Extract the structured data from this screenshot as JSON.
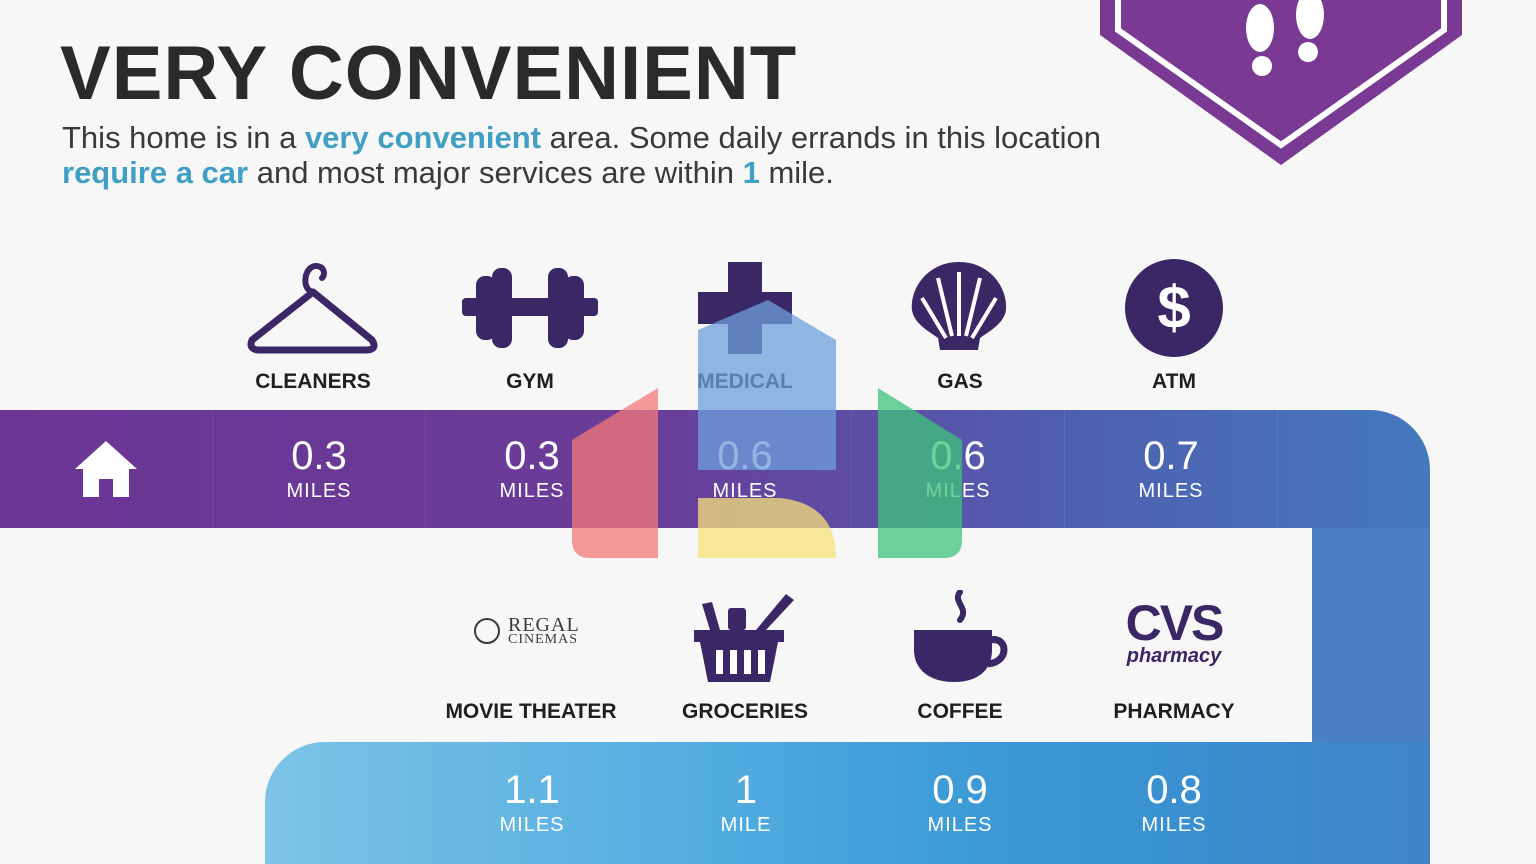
{
  "header": {
    "title": "VERY CONVENIENT",
    "desc_1": "This home is in a ",
    "desc_hl1": "very convenient",
    "desc_2": " area. Some daily errands in this location ",
    "desc_hl2": "require a car",
    "desc_3": " and most major services are within ",
    "desc_hl3": "1",
    "desc_4": " mile."
  },
  "top_row": [
    {
      "label": "CLEANERS",
      "value": "0.3",
      "unit": "MILES",
      "icon": "hanger-icon"
    },
    {
      "label": "GYM",
      "value": "0.3",
      "unit": "MILES",
      "icon": "dumbbell-icon"
    },
    {
      "label": "MEDICAL",
      "value": "0.6",
      "unit": "MILES",
      "icon": "medical-cross-icon"
    },
    {
      "label": "GAS",
      "value": "0.6",
      "unit": "MILES",
      "icon": "shell-icon"
    },
    {
      "label": "ATM",
      "value": "0.7",
      "unit": "MILES",
      "icon": "dollar-icon"
    }
  ],
  "bottom_row": [
    {
      "label": "MOVIE THEATER",
      "value": "1.1",
      "unit": "MILES",
      "logo_1": "REGAL",
      "logo_2": "CINEMAS"
    },
    {
      "label": "GROCERIES",
      "value": "1",
      "unit": "MILE",
      "icon": "basket-icon"
    },
    {
      "label": "COFFEE",
      "value": "0.9",
      "unit": "MILES",
      "icon": "coffee-icon"
    },
    {
      "label": "PHARMACY",
      "value": "0.8",
      "unit": "MILES",
      "logo_1": "CVS",
      "logo_2": "pharmacy"
    }
  ],
  "colors": {
    "purple": "#6b3594",
    "blue": "#4479bd",
    "light_blue": "#7cc3e6",
    "accent": "#3f9fc4"
  }
}
